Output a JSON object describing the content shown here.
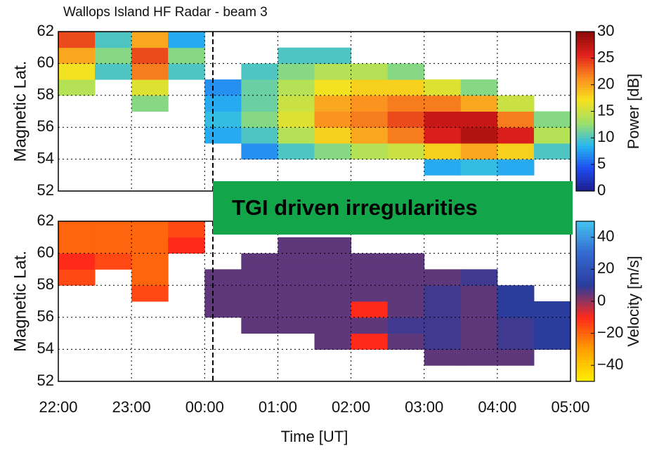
{
  "chart_data": [
    {
      "type": "heatmap",
      "title": "Wallops Island HF Radar - beam 3",
      "ylabel": "Magnetic Lat.",
      "xbins": [
        22,
        22.5,
        23,
        23.5,
        24,
        24.5,
        25,
        25.5,
        26,
        26.5,
        27,
        27.5,
        28,
        28.5,
        29
      ],
      "ybins": [
        52,
        53,
        54,
        55,
        56,
        57,
        58,
        59,
        60,
        61,
        62
      ],
      "values": [
        [
          null,
          null,
          null,
          null,
          null,
          null,
          null,
          null,
          null,
          null,
          null,
          null,
          null,
          null
        ],
        [
          null,
          null,
          null,
          null,
          null,
          null,
          null,
          null,
          null,
          null,
          8,
          9,
          8,
          null
        ],
        [
          null,
          null,
          null,
          null,
          null,
          7,
          10,
          12,
          14,
          15,
          18,
          20,
          18,
          10
        ],
        [
          null,
          null,
          null,
          null,
          8,
          10,
          14,
          18,
          20,
          22,
          26,
          28,
          26,
          14
        ],
        [
          null,
          null,
          null,
          null,
          9,
          12,
          16,
          21,
          22,
          24,
          27,
          27,
          22,
          12
        ],
        [
          null,
          null,
          12,
          null,
          8,
          11,
          15,
          20,
          21,
          22,
          22,
          20,
          15,
          null
        ],
        [
          14,
          null,
          16,
          null,
          7,
          11,
          14,
          17,
          18,
          18,
          16,
          12,
          null,
          null
        ],
        [
          17,
          10,
          22,
          10,
          null,
          10,
          12,
          14,
          14,
          12,
          null,
          null,
          null,
          null
        ],
        [
          20,
          12,
          24,
          12,
          null,
          null,
          10,
          10,
          null,
          null,
          null,
          null,
          null,
          null
        ],
        [
          24,
          10,
          20,
          8,
          null,
          null,
          null,
          null,
          null,
          null,
          null,
          null,
          null,
          null
        ]
      ],
      "xlim": [
        22,
        29
      ],
      "xticks": [
        22,
        23,
        24,
        25,
        26,
        27,
        28,
        29
      ],
      "ylim": [
        52,
        62
      ],
      "yticks": [
        52,
        54,
        56,
        58,
        60,
        62
      ],
      "grid": true,
      "colorbar_label": "Power [dB]",
      "clim": [
        0,
        30
      ],
      "cticks": [
        0,
        5,
        10,
        15,
        20,
        25,
        30
      ],
      "colormap": [
        "#1c1c8a",
        "#1f4cf0",
        "#28b8f0",
        "#9ee06a",
        "#f6e21e",
        "#fb8a1e",
        "#e0201c",
        "#8a0a0a"
      ]
    },
    {
      "type": "heatmap",
      "ylabel": "Magnetic Lat.",
      "xlabel": "Time [UT]",
      "xbins": [
        22,
        22.5,
        23,
        23.5,
        24,
        24.5,
        25,
        25.5,
        26,
        26.5,
        27,
        27.5,
        28,
        28.5,
        29
      ],
      "ybins": [
        52,
        53,
        54,
        55,
        56,
        57,
        58,
        59,
        60,
        61,
        62
      ],
      "values": [
        [
          null,
          null,
          null,
          null,
          null,
          null,
          null,
          null,
          null,
          null,
          null,
          null,
          null,
          null
        ],
        [
          null,
          null,
          null,
          null,
          null,
          null,
          null,
          null,
          null,
          null,
          5,
          5,
          5,
          null
        ],
        [
          null,
          null,
          null,
          null,
          null,
          null,
          null,
          5,
          -10,
          5,
          8,
          5,
          8,
          10
        ],
        [
          null,
          null,
          null,
          null,
          null,
          5,
          5,
          5,
          5,
          8,
          8,
          5,
          8,
          10
        ],
        [
          null,
          null,
          null,
          null,
          5,
          5,
          5,
          5,
          -10,
          5,
          8,
          5,
          10,
          10
        ],
        [
          null,
          null,
          -15,
          null,
          5,
          5,
          5,
          5,
          5,
          5,
          8,
          5,
          10,
          null
        ],
        [
          -15,
          null,
          -20,
          null,
          5,
          5,
          5,
          5,
          5,
          5,
          5,
          8,
          null,
          null
        ],
        [
          -10,
          -15,
          -20,
          null,
          null,
          5,
          5,
          5,
          5,
          5,
          null,
          null,
          null,
          null
        ],
        [
          -20,
          -20,
          -20,
          -10,
          null,
          null,
          5,
          5,
          null,
          null,
          null,
          null,
          null,
          null
        ],
        [
          -20,
          -20,
          -20,
          -15,
          null,
          null,
          null,
          null,
          null,
          null,
          null,
          null,
          null,
          null
        ]
      ],
      "xlim": [
        22,
        29
      ],
      "xticks": [
        {
          "value": 22,
          "label": "22:00"
        },
        {
          "value": 23,
          "label": "23:00"
        },
        {
          "value": 24,
          "label": "00:00"
        },
        {
          "value": 25,
          "label": "01:00"
        },
        {
          "value": 26,
          "label": "02:00"
        },
        {
          "value": 27,
          "label": "03:00"
        },
        {
          "value": 28,
          "label": "04:00"
        },
        {
          "value": 29,
          "label": "05:00"
        }
      ],
      "ylim": [
        52,
        62
      ],
      "yticks": [
        52,
        54,
        56,
        58,
        60,
        62
      ],
      "grid": true,
      "colorbar_label": "Velocity [m/s]",
      "clim": [
        -50,
        50
      ],
      "cticks": [
        {
          "value": -40,
          "label": "−40"
        },
        {
          "value": -20,
          "label": "−20"
        },
        0,
        20,
        40
      ],
      "colormap": [
        "#fff000",
        "#ffa000",
        "#ff2a1a",
        "#2a3c9c",
        "#3468d0",
        "#44c4f0"
      ]
    }
  ],
  "annotation": "TGI driven irregularities"
}
